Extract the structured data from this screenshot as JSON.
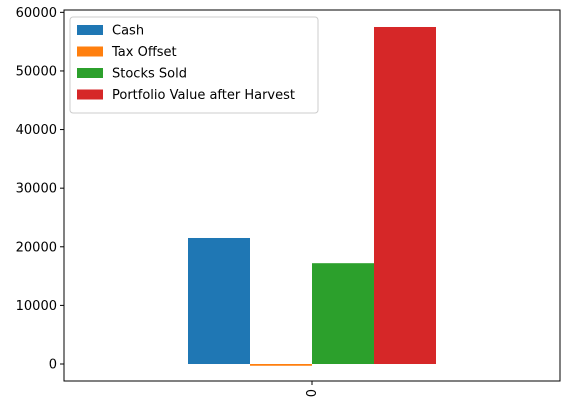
{
  "chart_data": {
    "type": "bar",
    "categories": [
      "0"
    ],
    "series": [
      {
        "name": "Cash",
        "values": [
          21500
        ],
        "color": "#1f77b4"
      },
      {
        "name": "Tax Offset",
        "values": [
          -300
        ],
        "color": "#ff7f0e"
      },
      {
        "name": "Stocks Sold",
        "values": [
          17200
        ],
        "color": "#2ca02c"
      },
      {
        "name": "Portfolio Value after Harvest",
        "values": [
          57500
        ],
        "color": "#d62728"
      }
    ],
    "yticks": [
      0,
      10000,
      20000,
      30000,
      40000,
      50000,
      60000
    ],
    "ylim": [
      -2900,
      60400
    ],
    "grid": false,
    "legend_position": "top-left",
    "xtick_rotation": "vertical"
  }
}
